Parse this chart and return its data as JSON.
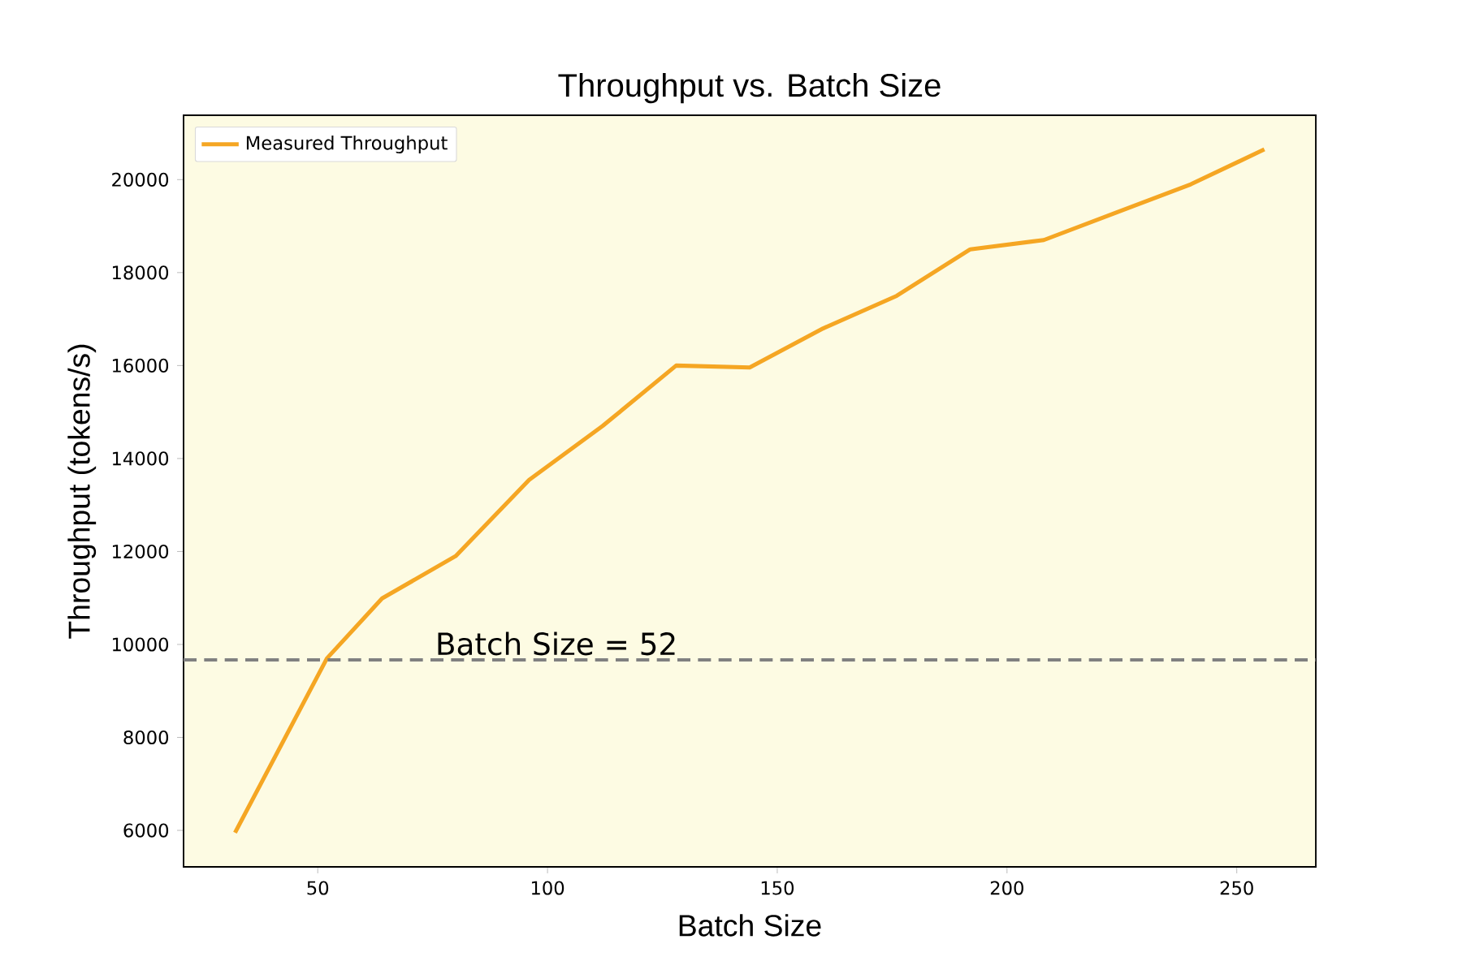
{
  "chart_data": {
    "type": "line",
    "title": "Throughput vs. Batch Size",
    "xlabel": "Batch Size",
    "ylabel": "Throughput (tokens/s)",
    "x": [
      32,
      52,
      64,
      80,
      96,
      112,
      128,
      144,
      160,
      176,
      192,
      208,
      224,
      240,
      256
    ],
    "series": [
      {
        "name": "Measured Throughput",
        "color": "#f5a623",
        "values": [
          5950,
          9700,
          10990,
          11900,
          13540,
          14700,
          16000,
          15960,
          16800,
          17500,
          18500,
          18700,
          19300,
          19900,
          20650
        ]
      }
    ],
    "xlim": [
      20.8,
      267.2
    ],
    "ylim": [
      5215,
      21385
    ],
    "xticks": [
      50,
      100,
      150,
      200,
      250
    ],
    "yticks": [
      6000,
      8000,
      10000,
      12000,
      14000,
      16000,
      18000,
      20000
    ],
    "ref_lines": [
      {
        "axis": "y",
        "value": 9670,
        "color": "#808080",
        "line_style": "dashed"
      }
    ],
    "annotations": [
      "Batch Size = 52"
    ],
    "legend": "top left",
    "grid": false,
    "marker": "none",
    "line_style": "solid"
  }
}
